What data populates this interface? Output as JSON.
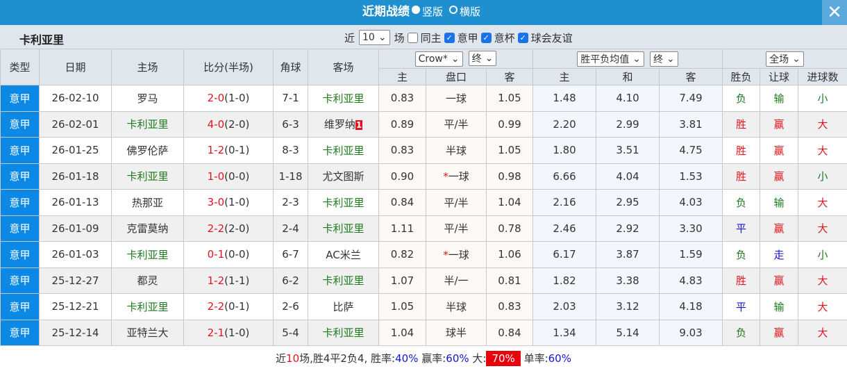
{
  "title": "近期战绩",
  "view_options": [
    "竖版",
    "横版"
  ],
  "team": "卡利亚里",
  "filters": {
    "recent_prefix": "近",
    "count": "10",
    "suffix": "场",
    "same_home": "同主",
    "leagues": [
      "意甲",
      "意杯",
      "球会友谊"
    ]
  },
  "headers": {
    "type": "类型",
    "date": "日期",
    "home": "主场",
    "score": "比分(半场)",
    "corner": "角球",
    "away": "客场",
    "odds_company": "Crow*",
    "odds_stage": "终",
    "euro_type": "胜平负均值",
    "euro_stage": "终",
    "period": "全场",
    "odds_sub": [
      "主",
      "盘口",
      "客"
    ],
    "euro_sub": [
      "主",
      "和",
      "客"
    ],
    "result_sub": [
      "胜负",
      "让球",
      "进球数"
    ]
  },
  "rows": [
    {
      "type": "意甲",
      "date": "26-02-10",
      "home": "罗马",
      "ft": "2-0",
      "ht": "(1-0)",
      "corner": "7-1",
      "away": "卡利亚里",
      "red": "",
      "oh": "0.83",
      "line": "一球",
      "star": false,
      "oa": "1.05",
      "eh": "1.48",
      "ed": "4.10",
      "ea": "7.49",
      "wl": "负",
      "ah": "输",
      "ou": "小",
      "home_is_team": false
    },
    {
      "type": "意甲",
      "date": "26-02-01",
      "home": "卡利亚里",
      "ft": "4-0",
      "ht": "(2-0)",
      "corner": "6-3",
      "away": "维罗纳",
      "red": "1",
      "oh": "0.89",
      "line": "平/半",
      "star": false,
      "oa": "0.99",
      "eh": "2.20",
      "ed": "2.99",
      "ea": "3.81",
      "wl": "胜",
      "ah": "赢",
      "ou": "大",
      "home_is_team": true
    },
    {
      "type": "意甲",
      "date": "26-01-25",
      "home": "佛罗伦萨",
      "ft": "1-2",
      "ht": "(0-1)",
      "corner": "8-3",
      "away": "卡利亚里",
      "red": "",
      "oh": "0.83",
      "line": "半球",
      "star": false,
      "oa": "1.05",
      "eh": "1.80",
      "ed": "3.51",
      "ea": "4.75",
      "wl": "胜",
      "ah": "赢",
      "ou": "大",
      "home_is_team": false
    },
    {
      "type": "意甲",
      "date": "26-01-18",
      "home": "卡利亚里",
      "ft": "1-0",
      "ht": "(0-0)",
      "corner": "1-18",
      "away": "尤文图斯",
      "red": "",
      "oh": "0.90",
      "line": "一球",
      "star": true,
      "oa": "0.98",
      "eh": "6.66",
      "ed": "4.04",
      "ea": "1.53",
      "wl": "胜",
      "ah": "赢",
      "ou": "小",
      "home_is_team": true
    },
    {
      "type": "意甲",
      "date": "26-01-13",
      "home": "热那亚",
      "ft": "3-0",
      "ht": "(1-0)",
      "corner": "2-3",
      "away": "卡利亚里",
      "red": "",
      "oh": "0.84",
      "line": "平/半",
      "star": false,
      "oa": "1.04",
      "eh": "2.16",
      "ed": "2.95",
      "ea": "4.03",
      "wl": "负",
      "ah": "输",
      "ou": "大",
      "home_is_team": false
    },
    {
      "type": "意甲",
      "date": "26-01-09",
      "home": "克雷莫纳",
      "ft": "2-2",
      "ht": "(2-0)",
      "corner": "2-4",
      "away": "卡利亚里",
      "red": "",
      "oh": "1.11",
      "line": "平/半",
      "star": false,
      "oa": "0.78",
      "eh": "2.46",
      "ed": "2.92",
      "ea": "3.30",
      "wl": "平",
      "ah": "赢",
      "ou": "大",
      "home_is_team": false
    },
    {
      "type": "意甲",
      "date": "26-01-03",
      "home": "卡利亚里",
      "ft": "0-1",
      "ht": "(0-0)",
      "corner": "6-7",
      "away": "AC米兰",
      "red": "",
      "oh": "0.82",
      "line": "一球",
      "star": true,
      "oa": "1.06",
      "eh": "6.17",
      "ed": "3.87",
      "ea": "1.59",
      "wl": "负",
      "ah": "走",
      "ou": "小",
      "home_is_team": true
    },
    {
      "type": "意甲",
      "date": "25-12-27",
      "home": "都灵",
      "ft": "1-2",
      "ht": "(1-1)",
      "corner": "6-2",
      "away": "卡利亚里",
      "red": "",
      "oh": "1.07",
      "line": "半/一",
      "star": false,
      "oa": "0.81",
      "eh": "1.82",
      "ed": "3.38",
      "ea": "4.83",
      "wl": "胜",
      "ah": "赢",
      "ou": "大",
      "home_is_team": false
    },
    {
      "type": "意甲",
      "date": "25-12-21",
      "home": "卡利亚里",
      "ft": "2-2",
      "ht": "(0-1)",
      "corner": "2-6",
      "away": "比萨",
      "red": "",
      "oh": "1.05",
      "line": "半球",
      "star": false,
      "oa": "0.83",
      "eh": "2.03",
      "ed": "3.12",
      "ea": "4.18",
      "wl": "平",
      "ah": "输",
      "ou": "大",
      "home_is_team": true
    },
    {
      "type": "意甲",
      "date": "25-12-14",
      "home": "亚特兰大",
      "ft": "2-1",
      "ht": "(1-0)",
      "corner": "5-4",
      "away": "卡利亚里",
      "red": "",
      "oh": "1.04",
      "line": "球半",
      "star": false,
      "oa": "0.84",
      "eh": "1.34",
      "ed": "5.14",
      "ea": "9.03",
      "wl": "负",
      "ah": "赢",
      "ou": "大",
      "home_is_team": false
    }
  ],
  "summary": {
    "p1": "近",
    "n": "10",
    "p2": "场,胜4平2负4, 胜率:",
    "win_rate": "40%",
    "p3": " 赢率:",
    "ah_rate": "60%",
    "p4": " 大:",
    "big_rate": "70%",
    "p5": " 单率:",
    "odd_rate": "60%"
  },
  "colors": {
    "header": "#1e90d0",
    "type_cell": "#0c89e4",
    "team": "#1d7a1d",
    "win": "#e0141e",
    "lose": "#1d7a1d",
    "draw": "#1414d0"
  }
}
